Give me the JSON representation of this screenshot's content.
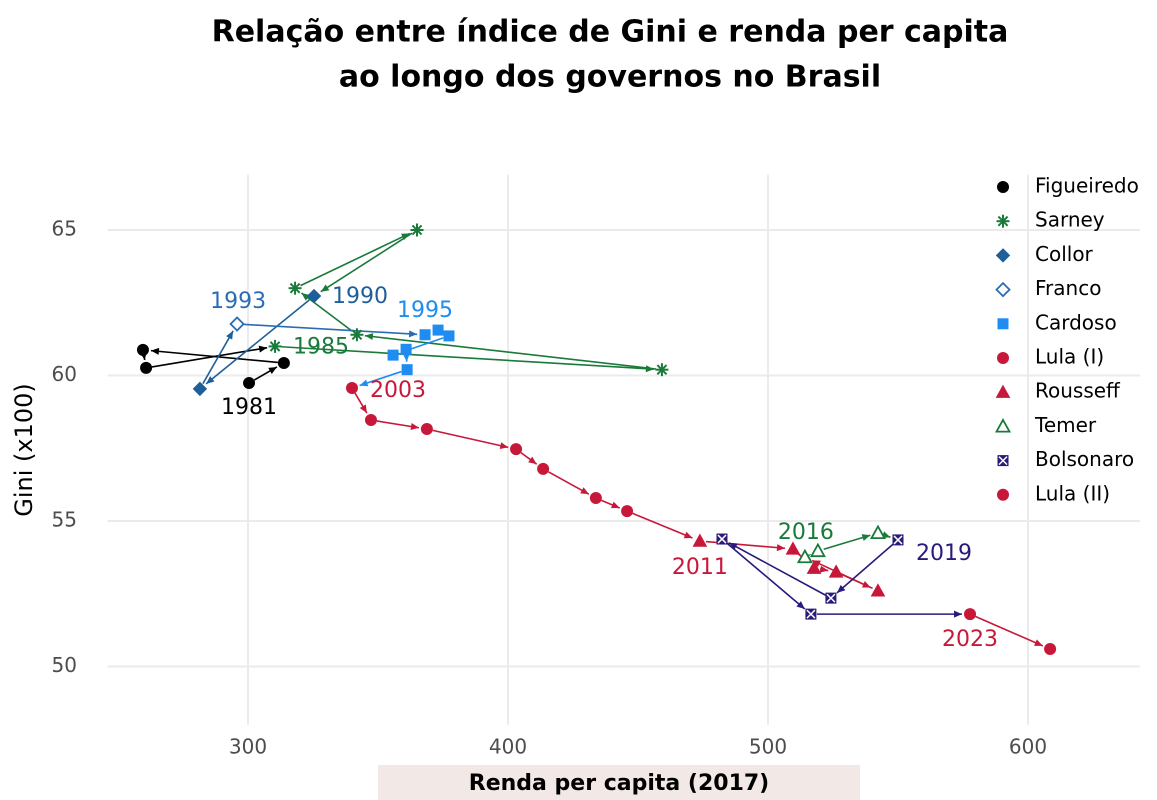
{
  "chart_data": {
    "type": "scatter",
    "title": "Relação entre índice de Gini e renda per capita",
    "subtitle": "ao longo dos governos no Brasil",
    "x_label": "Renda per capita (2017)",
    "y_label": "Gini (x100)",
    "xlim": [
      246,
      643
    ],
    "xticks": [
      300,
      400,
      500,
      600
    ],
    "ylim": [
      48,
      66.9
    ],
    "yticks": [
      50,
      55,
      60,
      65
    ],
    "grid": true,
    "legend": "right",
    "connected": true,
    "series": [
      {
        "name": "Figueiredo",
        "color": "#000000",
        "marker": "circle",
        "x": [
          300.4,
          313.8,
          259.6,
          260.8
        ],
        "values": [
          59.74,
          60.43,
          60.88,
          60.26
        ],
        "point_labels": [
          "1981",
          null,
          null,
          null
        ]
      },
      {
        "name": "Sarney",
        "color": "#1a7a3a",
        "marker": "asterisk",
        "x": [
          310.4,
          459.2,
          341.9,
          318.1,
          365.0
        ],
        "values": [
          61.0,
          60.2,
          61.4,
          63.0,
          65.0
        ],
        "point_labels": [
          "1985",
          null,
          null,
          null,
          null
        ]
      },
      {
        "name": "Collor",
        "color": "#1f5f99",
        "marker": "diamond",
        "x": [
          325.4,
          281.5
        ],
        "values": [
          62.73,
          59.54
        ],
        "point_labels": [
          "1990",
          null
        ]
      },
      {
        "name": "Franco",
        "color": "#2a6db5",
        "marker": "open-diamond",
        "x": [
          295.8
        ],
        "values": [
          61.77
        ],
        "point_labels": [
          "1993"
        ]
      },
      {
        "name": "Cardoso",
        "color": "#1e8cf0",
        "marker": "square",
        "x": [
          368.1,
          373.1,
          377.3,
          355.8,
          360.8,
          361.2
        ],
        "values": [
          61.4,
          61.56,
          61.36,
          60.7,
          60.9,
          60.2
        ],
        "point_labels": [
          "1995",
          null,
          null,
          null,
          null,
          null
        ]
      },
      {
        "name": "Lula (I)",
        "color": "#c8183a",
        "marker": "circle",
        "x": [
          340.0,
          347.3,
          368.8,
          403.1,
          413.5,
          433.8,
          445.8
        ],
        "values": [
          59.57,
          58.47,
          58.16,
          57.47,
          56.79,
          55.79,
          55.34
        ],
        "point_labels": [
          "2003",
          null,
          null,
          null,
          null,
          null,
          null
        ]
      },
      {
        "name": "Rousseff",
        "color": "#c8183a",
        "marker": "triangle",
        "x": [
          473.8,
          509.6,
          517.7,
          526.2,
          542.3
        ],
        "values": [
          54.31,
          54.04,
          53.38,
          53.25,
          52.6
        ],
        "point_labels": [
          "2011",
          null,
          null,
          null,
          null
        ]
      },
      {
        "name": "Temer",
        "color": "#1a7a3a",
        "marker": "open-triangle",
        "x": [
          514.2,
          519.2,
          542.3
        ],
        "values": [
          53.76,
          53.97,
          54.59
        ],
        "point_labels": [
          "2016",
          null,
          null
        ]
      },
      {
        "name": "Bolsonaro",
        "color": "#2a1a7a",
        "marker": "boxed-x",
        "x": [
          550.0,
          524.2,
          482.3,
          516.5
        ],
        "values": [
          54.35,
          52.35,
          54.38,
          51.8
        ],
        "point_labels": [
          "2019",
          null,
          null,
          null
        ]
      },
      {
        "name": "Lula (II)",
        "color": "#c8183a",
        "marker": "circle",
        "x": [
          577.7,
          608.5
        ],
        "values": [
          51.8,
          50.6
        ],
        "point_labels": [
          "2023",
          null
        ]
      }
    ]
  }
}
